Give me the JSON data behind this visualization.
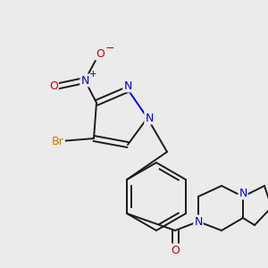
{
  "background_color": "#ebebeb",
  "bond_color": "#1a1a1a",
  "atom_colors": {
    "N": "#0000cc",
    "O": "#cc0000",
    "Br": "#cc7700",
    "C": "#1a1a1a"
  },
  "figsize": [
    3.0,
    3.0
  ],
  "dpi": 100,
  "lw": 1.4
}
